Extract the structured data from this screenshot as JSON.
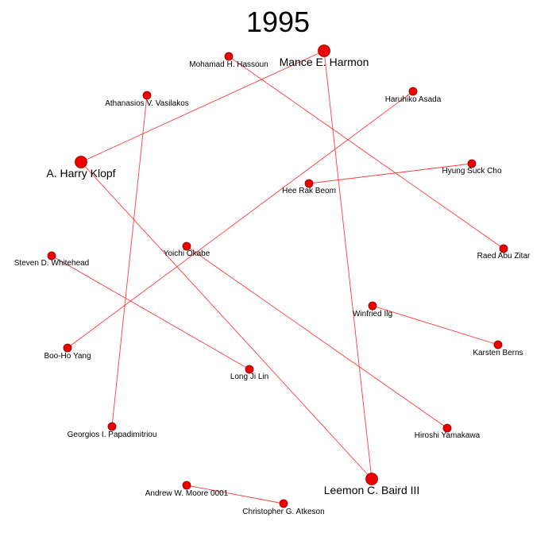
{
  "title": "1995",
  "nodes": [
    {
      "id": "mance",
      "label": "Mance E. Harmon",
      "size": "large"
    },
    {
      "id": "hassoun",
      "label": "Mohamad H. Hassoun",
      "size": "small"
    },
    {
      "id": "vasilakos",
      "label": "Athanasios V. Vasilakos",
      "size": "small"
    },
    {
      "id": "asada",
      "label": "Haruhiko Asada",
      "size": "small"
    },
    {
      "id": "klopf",
      "label": "A. Harry Klopf",
      "size": "large"
    },
    {
      "id": "cho",
      "label": "Hyung Suck Cho",
      "size": "small"
    },
    {
      "id": "beom",
      "label": "Hee Rak Beom",
      "size": "small"
    },
    {
      "id": "zitar",
      "label": "Raed Abu Zitar",
      "size": "small"
    },
    {
      "id": "okabe",
      "label": "Yoichi Okabe",
      "size": "small"
    },
    {
      "id": "whitehead",
      "label": "Steven D. Whitehead",
      "size": "small"
    },
    {
      "id": "ilg",
      "label": "Winfried Ilg",
      "size": "small"
    },
    {
      "id": "berns",
      "label": "Karsten Berns",
      "size": "small"
    },
    {
      "id": "yang",
      "label": "Boo-Ho Yang",
      "size": "small"
    },
    {
      "id": "lin",
      "label": "Long Ji Lin",
      "size": "small"
    },
    {
      "id": "papadimitriou",
      "label": "Georgios I. Papadimitriou",
      "size": "small"
    },
    {
      "id": "yamakawa",
      "label": "Hiroshi Yamakawa",
      "size": "small"
    },
    {
      "id": "moore",
      "label": "Andrew W. Moore 0001",
      "size": "small"
    },
    {
      "id": "baird",
      "label": "Leemon C. Baird III",
      "size": "large"
    },
    {
      "id": "atkeson",
      "label": "Christopher G. Atkeson",
      "size": "small"
    }
  ],
  "edges": [
    [
      "mance",
      "klopf"
    ],
    [
      "mance",
      "baird"
    ],
    [
      "klopf",
      "baird"
    ],
    [
      "hassoun",
      "zitar"
    ],
    [
      "vasilakos",
      "papadimitriou"
    ],
    [
      "asada",
      "yang"
    ],
    [
      "cho",
      "beom"
    ],
    [
      "okabe",
      "yamakawa"
    ],
    [
      "whitehead",
      "lin"
    ],
    [
      "ilg",
      "berns"
    ],
    [
      "moore",
      "atkeson"
    ]
  ],
  "colors": {
    "node": "#ee0000",
    "edge": "#ff3b3b",
    "label": "#000000"
  }
}
